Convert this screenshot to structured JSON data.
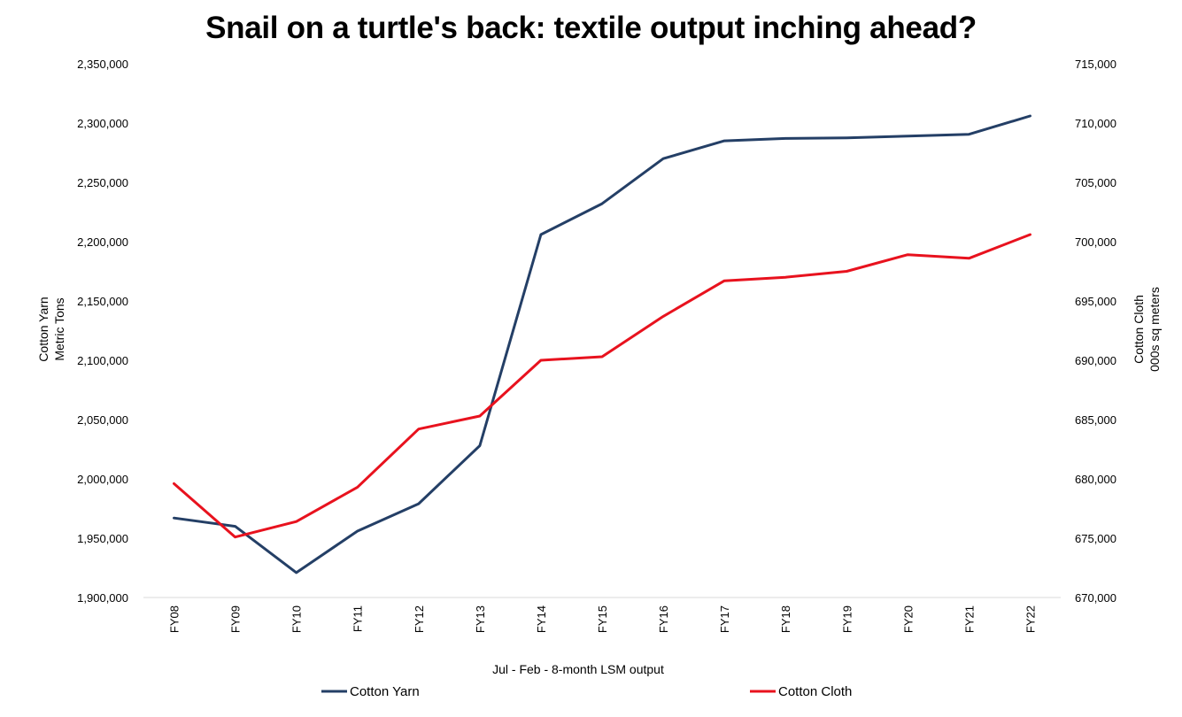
{
  "chart_data": {
    "type": "line",
    "title": "Snail on a turtle's back: textile output inching ahead?",
    "xlabel": "Jul - Feb -  8-month LSM output",
    "categories": [
      "FY08",
      "FY09",
      "FY10",
      "FY11",
      "FY12",
      "FY13",
      "FY14",
      "FY15",
      "FY16",
      "FY17",
      "FY18",
      "FY19",
      "FY20",
      "FY21",
      "FY22"
    ],
    "y_left": {
      "label_lines": [
        "Cotton Yarn",
        "Metric Tons"
      ],
      "ylim": [
        1900000,
        2350000
      ],
      "ticks": [
        "1,900,000",
        "1,950,000",
        "2,000,000",
        "2,050,000",
        "2,100,000",
        "2,150,000",
        "2,200,000",
        "2,250,000",
        "2,300,000",
        "2,350,000"
      ],
      "tick_values": [
        1900000,
        1950000,
        2000000,
        2050000,
        2100000,
        2150000,
        2200000,
        2250000,
        2300000,
        2350000
      ]
    },
    "y_right": {
      "label_lines": [
        "Cotton Cloth",
        "000s sq meters"
      ],
      "ylim": [
        670000,
        715000
      ],
      "ticks": [
        "670,000",
        "675,000",
        "680,000",
        "685,000",
        "690,000",
        "695,000",
        "700,000",
        "705,000",
        "710,000",
        "715,000"
      ],
      "tick_values": [
        670000,
        675000,
        680000,
        685000,
        690000,
        695000,
        700000,
        705000,
        710000,
        715000
      ]
    },
    "series": [
      {
        "name": "Cotton Yarn",
        "axis": "left",
        "color": "#243F66",
        "values": [
          1967000,
          1960000,
          1921000,
          1956000,
          1979000,
          2028000,
          2206000,
          2232000,
          2270000,
          2285000,
          2287000,
          2287500,
          2289000,
          2290500,
          2306000
        ]
      },
      {
        "name": "Cotton Cloth",
        "axis": "right",
        "color": "#E8121E",
        "values": [
          679600,
          675100,
          676400,
          679300,
          684200,
          685300,
          690000,
          690300,
          693700,
          696700,
          697000,
          697500,
          698900,
          698600,
          700600
        ]
      }
    ],
    "legend_position": "bottom",
    "grid": false
  }
}
